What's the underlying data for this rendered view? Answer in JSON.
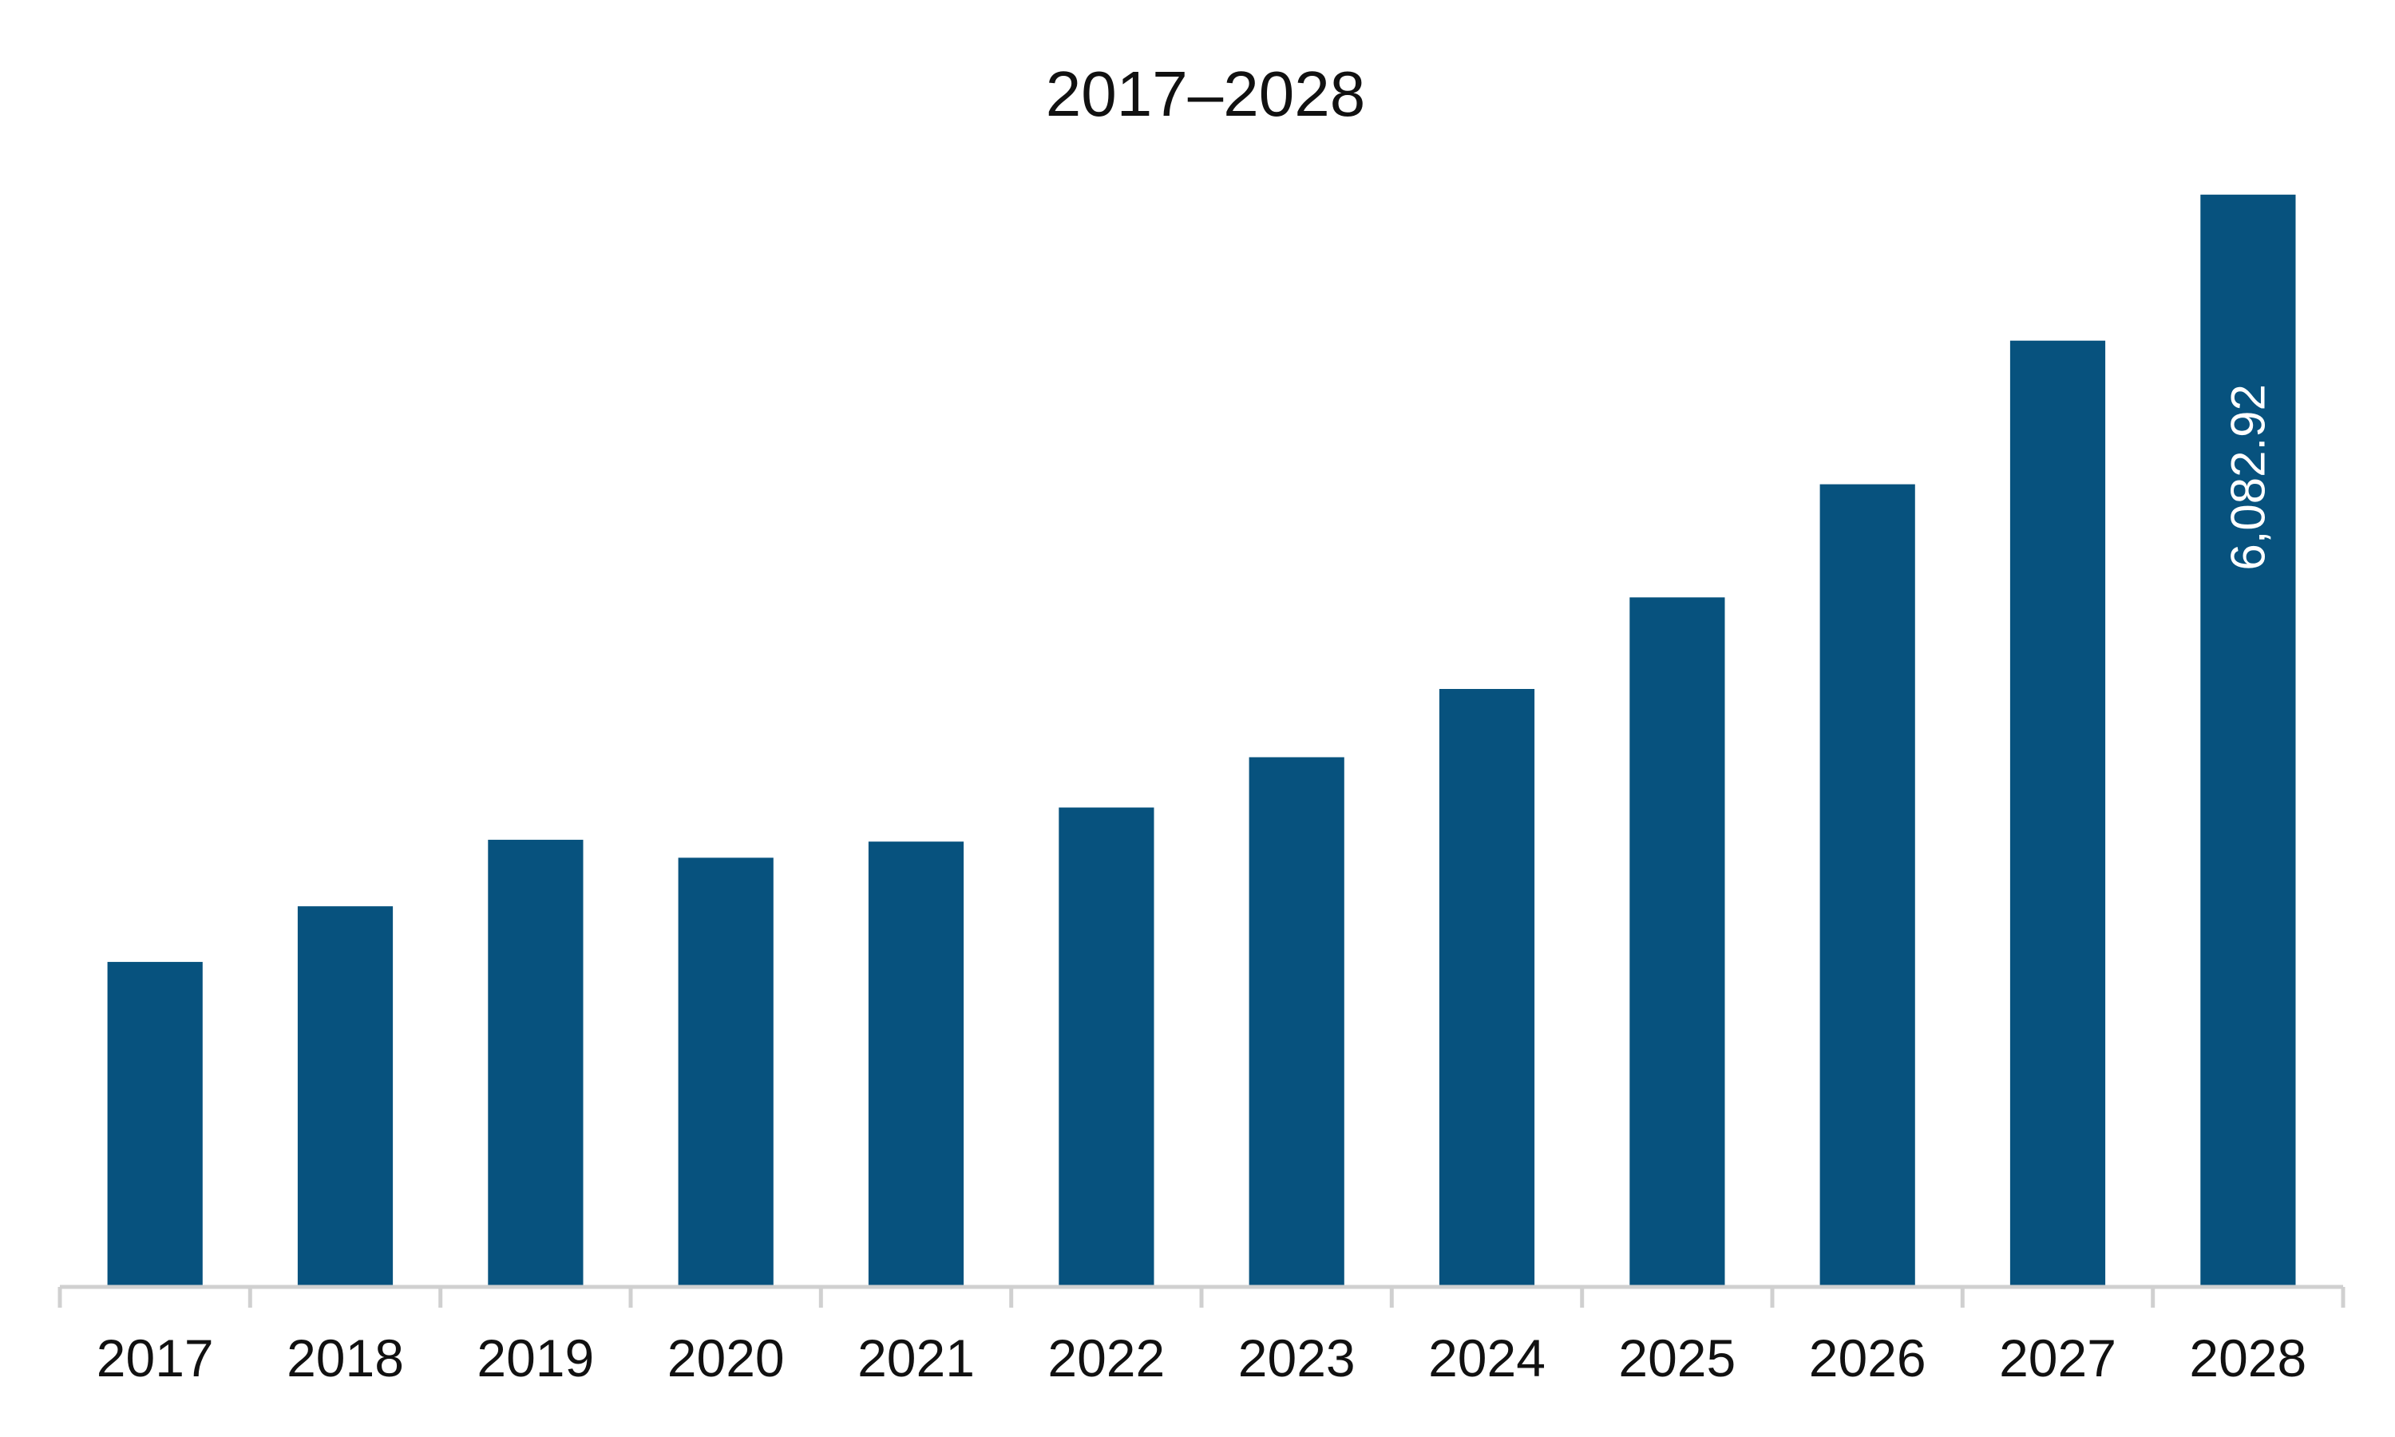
{
  "chart_data": {
    "type": "bar",
    "title": "2017–2028",
    "xlabel": "",
    "ylabel": "",
    "categories": [
      "2017",
      "2018",
      "2019",
      "2020",
      "2021",
      "2022",
      "2023",
      "2024",
      "2025",
      "2026",
      "2027",
      "2028"
    ],
    "values": [
      1810,
      2120,
      2490,
      2390,
      2480,
      2670,
      2950,
      3330,
      3840,
      4470,
      5270,
      6082.92
    ],
    "data_labels": [
      "",
      "",
      "",
      "",
      "",
      "",
      "",
      "",
      "",
      "",
      "",
      "6,082.92"
    ],
    "ylim": [
      0,
      6300
    ],
    "grid": false,
    "legend": "none",
    "bar_color": "#07527E",
    "axis_color": "#D0D0D0"
  }
}
